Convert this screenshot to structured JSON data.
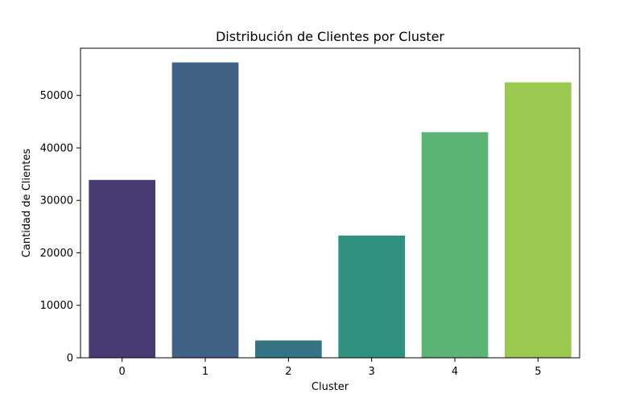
{
  "chart_data": {
    "type": "bar",
    "title": "Distribución de Clientes por Cluster",
    "xlabel": "Cluster",
    "ylabel": "Cantidad de Clientes",
    "categories": [
      "0",
      "1",
      "2",
      "3",
      "4",
      "5"
    ],
    "values": [
      33900,
      56300,
      3300,
      23300,
      43000,
      52500
    ],
    "colors": [
      "#483a74",
      "#416185",
      "#337384",
      "#319181",
      "#5bb376",
      "#9bc84e"
    ],
    "yticks": [
      0,
      10000,
      20000,
      30000,
      40000,
      50000
    ],
    "ylim": [
      0,
      59000
    ],
    "grid": false,
    "legend": "none"
  }
}
